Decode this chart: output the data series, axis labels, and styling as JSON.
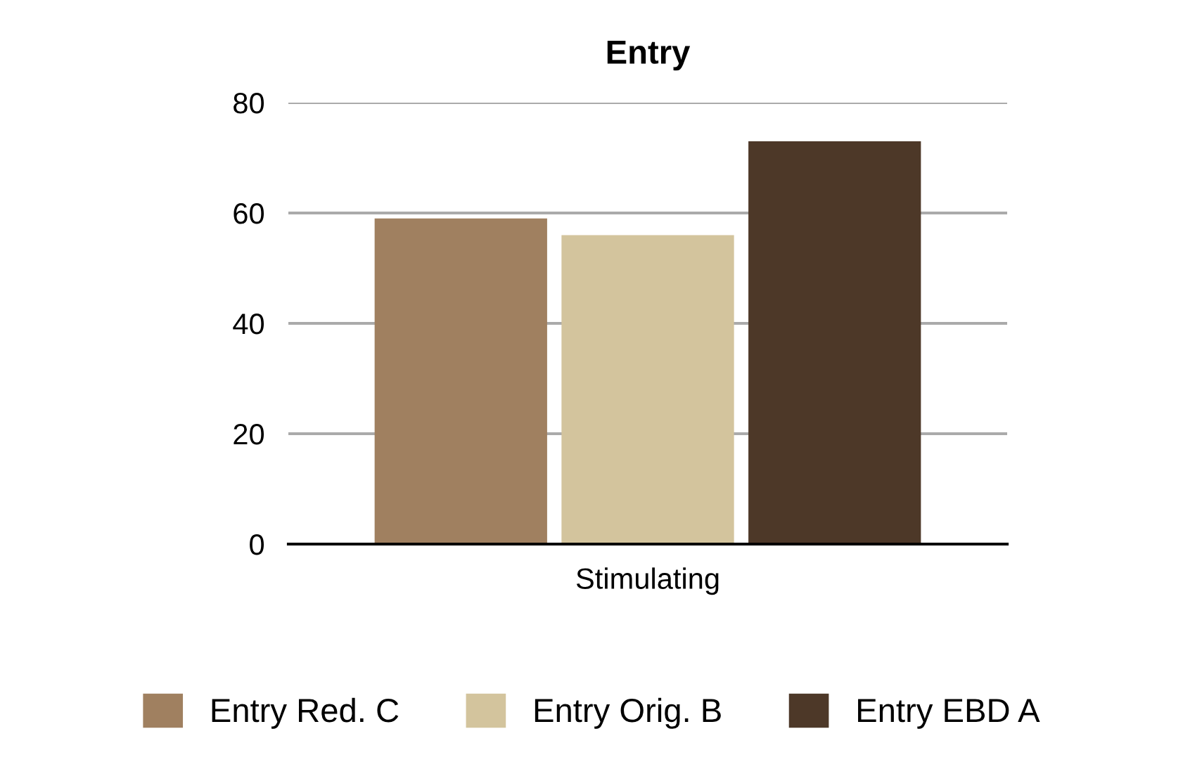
{
  "chart_data": {
    "type": "bar",
    "title": "Entry",
    "categories": [
      "Stimulating"
    ],
    "series": [
      {
        "name": "Entry Red. C",
        "color": "#a08060",
        "values": [
          59
        ]
      },
      {
        "name": "Entry Orig. B",
        "color": "#d3c49d",
        "values": [
          56
        ]
      },
      {
        "name": "Entry EBD A",
        "color": "#4d3828",
        "values": [
          73
        ]
      }
    ],
    "ylim": [
      0,
      80
    ],
    "yticks": [
      0,
      20,
      40,
      60,
      80
    ],
    "grid": "y",
    "legend": "bottom"
  }
}
